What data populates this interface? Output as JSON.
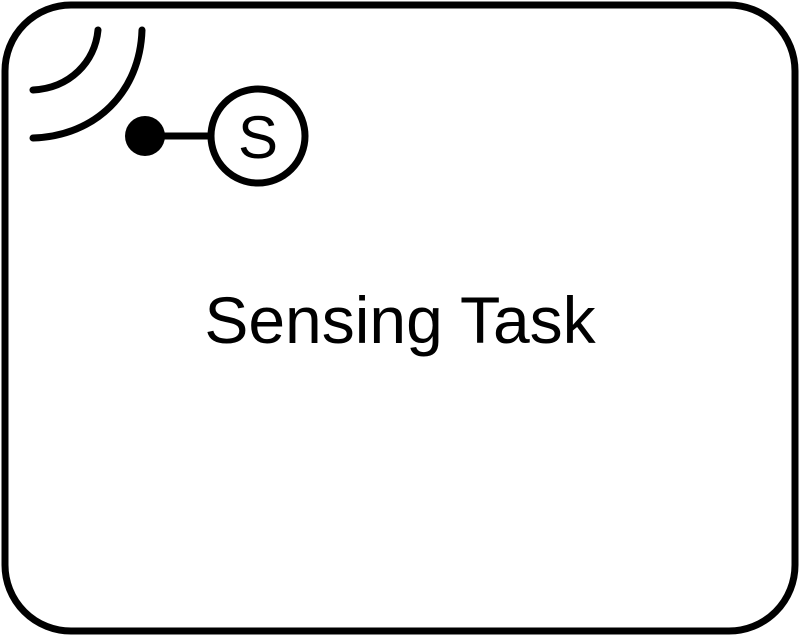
{
  "task": {
    "label": "Sensing Task",
    "type": "sensing-task"
  },
  "sensor_marker": {
    "letter": "S",
    "icon": "wireless-signal-icon"
  },
  "colors": {
    "stroke": "#000000",
    "fill": "#ffffff"
  }
}
